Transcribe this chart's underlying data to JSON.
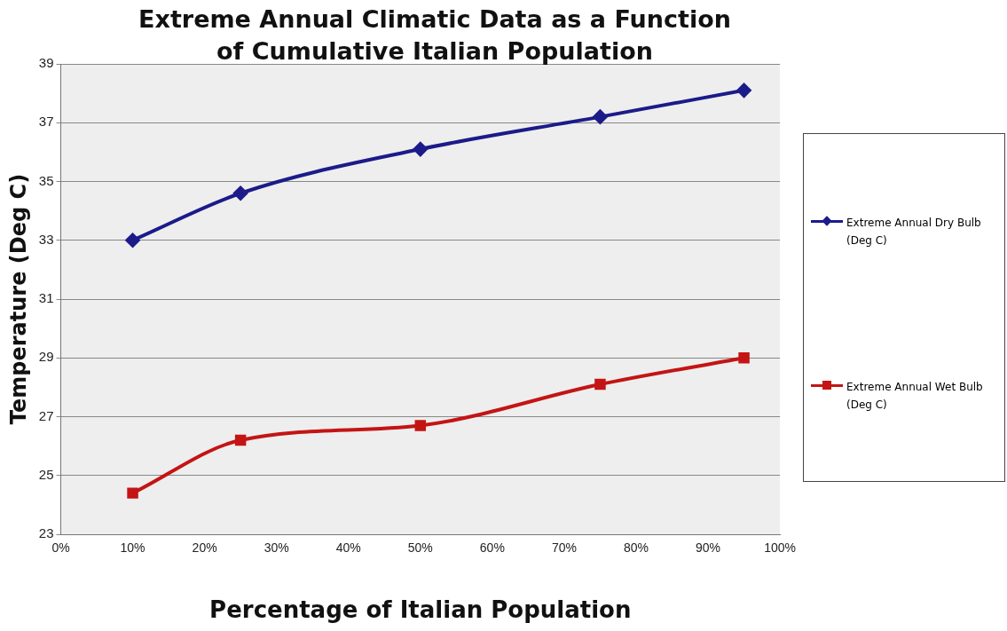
{
  "chart_data": {
    "type": "line",
    "title": "Extreme Annual Climatic Data as a Function of Cumulative Italian Population",
    "xlabel": "Percentage of Italian Population",
    "ylabel": "Temperature (Deg C)",
    "x": [
      10,
      25,
      50,
      75,
      95
    ],
    "series": [
      {
        "name": "Extreme Annual Dry Bulb (Deg C)",
        "color": "#1b1b8a",
        "marker": "diamond",
        "values": [
          33.0,
          34.6,
          36.1,
          37.2,
          38.1
        ]
      },
      {
        "name": "Extreme Annual Wet Bulb (Deg C)",
        "color": "#c41414",
        "marker": "square",
        "values": [
          24.4,
          26.2,
          26.7,
          28.1,
          29.0
        ]
      }
    ],
    "xlim": [
      0,
      100
    ],
    "xticks": [
      {
        "value": 0,
        "label": "0%"
      },
      {
        "value": 10,
        "label": "10%"
      },
      {
        "value": 20,
        "label": "20%"
      },
      {
        "value": 30,
        "label": "30%"
      },
      {
        "value": 40,
        "label": "40%"
      },
      {
        "value": 50,
        "label": "50%"
      },
      {
        "value": 60,
        "label": "60%"
      },
      {
        "value": 70,
        "label": "70%"
      },
      {
        "value": 80,
        "label": "80%"
      },
      {
        "value": 90,
        "label": "90%"
      },
      {
        "value": 100,
        "label": "100%"
      }
    ],
    "ylim": [
      23,
      39
    ],
    "yticks": [
      23,
      25,
      27,
      29,
      31,
      33,
      35,
      37,
      39
    ],
    "grid": "y",
    "legend": "right",
    "line_style": "solid"
  }
}
